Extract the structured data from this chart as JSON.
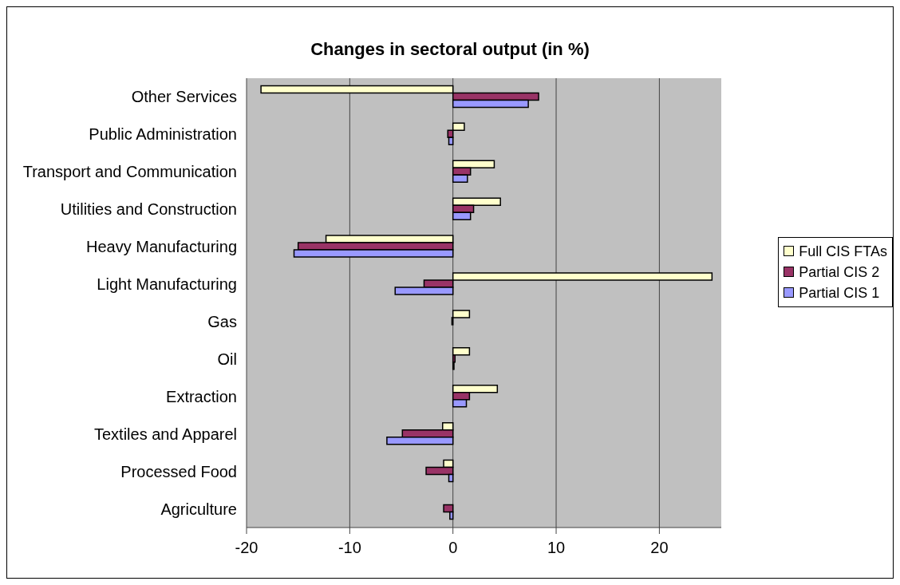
{
  "chart_data": {
    "type": "bar",
    "orientation": "horizontal",
    "title": "Changes in sectoral output (in %)",
    "categories": [
      "Other Services",
      "Public Administration",
      "Transport and Communication",
      "Utilities and Construction",
      "Heavy Manufacturing",
      "Light Manufacturing",
      "Gas",
      "Oil",
      "Extraction",
      "Textiles and Apparel",
      "Processed Food",
      "Agriculture"
    ],
    "series": [
      {
        "name": "Full CIS FTAs",
        "color": "#ffffcc",
        "values": [
          -18.6,
          1.1,
          4.0,
          4.6,
          -12.3,
          25.1,
          1.6,
          1.6,
          4.3,
          -1.0,
          -0.9,
          0
        ]
      },
      {
        "name": "Partial CIS 2",
        "color": "#993366",
        "values": [
          8.3,
          -0.5,
          1.7,
          2.0,
          -15.0,
          -2.8,
          -0.1,
          0.2,
          1.6,
          -4.9,
          -2.6,
          -0.9
        ]
      },
      {
        "name": "Partial CIS 1",
        "color": "#9999ff",
        "values": [
          7.3,
          -0.4,
          1.4,
          1.7,
          -15.4,
          -5.6,
          0,
          0.1,
          1.3,
          -6.4,
          -0.4,
          -0.3
        ]
      }
    ],
    "xlim": [
      -20,
      26
    ],
    "xticks": [
      -20,
      -10,
      0,
      10,
      20
    ],
    "grid": "x",
    "legend": "right"
  }
}
